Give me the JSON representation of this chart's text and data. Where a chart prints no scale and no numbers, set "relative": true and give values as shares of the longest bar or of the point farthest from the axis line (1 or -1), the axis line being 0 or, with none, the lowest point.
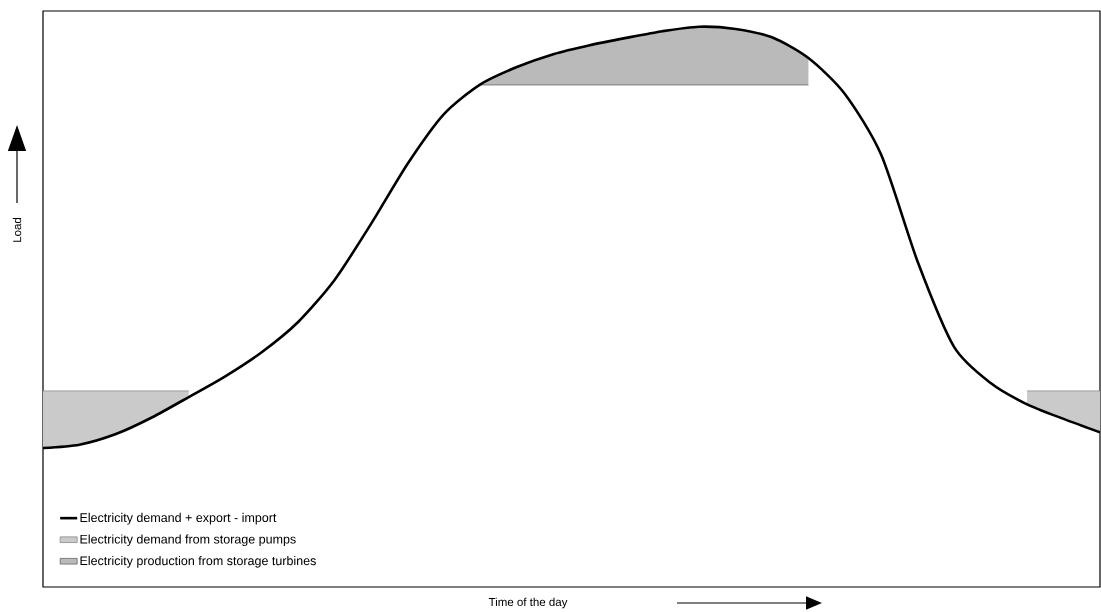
{
  "chart_data": {
    "type": "line",
    "relative": true,
    "xlabel": "Time of the day",
    "ylabel": "Load",
    "legend": "bottom left",
    "categories": [
      null,
      null,
      null,
      null,
      null,
      null,
      null,
      null,
      null,
      null,
      null,
      null,
      null,
      null,
      null,
      null,
      null,
      null,
      null,
      null,
      null,
      null,
      null,
      null,
      null,
      null,
      null,
      null,
      null,
      null
    ],
    "series": [
      {
        "name": "Electricity demand + export - import",
        "color": "#000000",
        "values": [
          0.248,
          0.254,
          0.273,
          0.303,
          0.339,
          0.376,
          0.419,
          0.473,
          0.548,
          0.648,
          0.755,
          0.844,
          0.897,
          0.928,
          0.951,
          0.967,
          0.98,
          0.992,
          1.0,
          0.996,
          0.981,
          0.944,
          0.88,
          0.771,
          0.58,
          0.428,
          0.364,
          0.326,
          0.3,
          0.276
        ]
      },
      {
        "name": "Electricity demand from storage pumps",
        "color": "#8a8a8a",
        "values": [
          0.35,
          0.35,
          0.35,
          0.35,
          0.35,
          null,
          null,
          null,
          null,
          null,
          null,
          null,
          null,
          null,
          null,
          null,
          null,
          null,
          null,
          null,
          null,
          null,
          null,
          null,
          null,
          null,
          null,
          0.35,
          0.35,
          0.35
        ],
        "lower": [
          0.248,
          0.254,
          0.273,
          0.303,
          0.339,
          null,
          null,
          null,
          null,
          null,
          null,
          null,
          null,
          null,
          null,
          null,
          null,
          null,
          null,
          null,
          null,
          null,
          null,
          null,
          null,
          null,
          null,
          0.326,
          0.3,
          0.276
        ],
        "upper": [
          0.35,
          0.35,
          0.35,
          0.35,
          0.35,
          null,
          null,
          null,
          null,
          null,
          null,
          null,
          null,
          null,
          null,
          null,
          null,
          null,
          null,
          null,
          null,
          null,
          null,
          null,
          null,
          null,
          null,
          0.35,
          0.35,
          0.35
        ]
      },
      {
        "name": "Electricity production from storage turbines",
        "color": "#666666",
        "values": [
          null,
          null,
          null,
          null,
          null,
          null,
          null,
          null,
          null,
          null,
          null,
          null,
          0.896,
          0.896,
          0.896,
          0.896,
          0.896,
          0.896,
          0.896,
          0.896,
          0.896,
          0.896,
          null,
          null,
          null,
          null,
          null,
          null,
          null,
          null
        ],
        "lower": [
          null,
          null,
          null,
          null,
          null,
          null,
          null,
          null,
          null,
          null,
          null,
          null,
          0.896,
          0.896,
          0.896,
          0.896,
          0.896,
          0.896,
          0.896,
          0.896,
          0.896,
          0.896,
          null,
          null,
          null,
          null,
          null,
          null,
          null,
          null
        ],
        "upper": [
          null,
          null,
          null,
          null,
          null,
          null,
          null,
          null,
          null,
          null,
          null,
          null,
          0.897,
          0.928,
          0.951,
          0.967,
          0.98,
          0.992,
          1.0,
          0.996,
          0.981,
          0.944,
          null,
          null,
          null,
          null,
          null,
          null,
          null,
          null
        ]
      }
    ]
  }
}
